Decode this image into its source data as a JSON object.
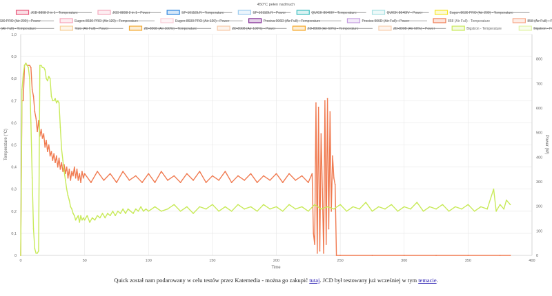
{
  "chart_data": {
    "type": "line",
    "title": "450°C pełen nadmuch",
    "xlabel": "Time",
    "ylabel_left": "Temperature (°C)",
    "ylabel_right": "Power (W)",
    "xlim": [
      0,
      400
    ],
    "ylim_left": [
      0,
      1.0
    ],
    "ylim_right": [
      0,
      900
    ],
    "x_ticks": [
      "0",
      "50",
      "100",
      "150",
      "200",
      "250",
      "300",
      "350",
      "400"
    ],
    "y_left_ticks": [
      "0",
      "0,1",
      "0,2",
      "0,3",
      "0,4",
      "0,5",
      "0,6",
      "0,7",
      "0,8",
      "0,9",
      "1,0"
    ],
    "y_right_ticks": [
      "0",
      "100",
      "200",
      "300",
      "400",
      "500",
      "600",
      "700",
      "800"
    ],
    "grid": true,
    "legend_position": "top",
    "legend": [
      {
        "name": "JCD 8898 2 in 1 - Temperature",
        "color": "#e8567a",
        "hidden": true
      },
      {
        "name": "JCD 8898 2 in 1 - Power",
        "color": "#f4a9bd",
        "hidden": true
      },
      {
        "name": "SP-1011DLR - Temperature",
        "color": "#2e86de",
        "hidden": true
      },
      {
        "name": "SP-1011DLR - Power",
        "color": "#9fcdf0",
        "hidden": true
      },
      {
        "name": "QUICK 8640IV - Temperature",
        "color": "#3fbfc0",
        "hidden": true
      },
      {
        "name": "QUICK 8640IV - Power",
        "color": "#a8e1e2",
        "hidden": true
      },
      {
        "name": "Eugen 8630 PRO (Air 200) - Temperature",
        "color": "#f5e62a",
        "hidden": true
      },
      {
        "name": "Eugen 8630 PRO (Air 200) - Power",
        "color": "#f8ee8c",
        "hidden": true
      },
      {
        "name": "Eugen 8630 PRO (Air 120) - Temperature",
        "color": "#f7a4b8",
        "hidden": true
      },
      {
        "name": "Eugen 8630 PRO (Air 120) - Power",
        "color": "#f9cbd6",
        "hidden": true
      },
      {
        "name": "Prociva 906D (Air Full) - Temperature",
        "color": "#7a1f8e",
        "hidden": true
      },
      {
        "name": "Prociva 906D (Air Full) - Power",
        "color": "#c39be0",
        "hidden": true
      },
      {
        "name": "858 (Air Full) - Temperature",
        "color": "#f07a50",
        "hidden": false
      },
      {
        "name": "858 (Air Full) - Power",
        "color": "#f7a585",
        "hidden": true
      },
      {
        "name": "Yato (Air Full) - Temperature",
        "color": "#f2b14c",
        "hidden": true
      },
      {
        "name": "Yato (Air Full) - Power",
        "color": "#f7d09a",
        "hidden": true
      },
      {
        "name": "ZD-8908 (Air 100%) - Temperature",
        "color": "#f2a930",
        "hidden": true
      },
      {
        "name": "ZD-8908 (Air 100%) - Power",
        "color": "#f7c9a6",
        "hidden": true
      },
      {
        "name": "ZD-8908 (Air 60%) - Temperature",
        "color": "#f5a623",
        "hidden": true
      },
      {
        "name": "ZD-8908 (Air 60%) - Power",
        "color": "#f8cfae",
        "hidden": true
      },
      {
        "name": "Bigstron - Temperature",
        "color": "#c8ea59",
        "hidden": false
      },
      {
        "name": "Bigstron - Power",
        "color": "#e2f3a6",
        "hidden": true
      }
    ],
    "series": [
      {
        "name": "858 (Air Full) - Temperature",
        "color": "#f07a50",
        "axis": "left",
        "points": [
          [
            0,
            0
          ],
          [
            1,
            0.7
          ],
          [
            2,
            0.7
          ],
          [
            3,
            0.86
          ],
          [
            4,
            0.87
          ],
          [
            5,
            0.86
          ],
          [
            6,
            0.86
          ],
          [
            7,
            0.86
          ],
          [
            8,
            0.85
          ],
          [
            9,
            0.75
          ],
          [
            10,
            0.72
          ],
          [
            11,
            0.65
          ],
          [
            12,
            0.62
          ],
          [
            13,
            0.56
          ],
          [
            14,
            0.61
          ],
          [
            15,
            0.54
          ],
          [
            16,
            0.57
          ],
          [
            17,
            0.53
          ],
          [
            18,
            0.55
          ],
          [
            19,
            0.49
          ],
          [
            20,
            0.52
          ],
          [
            21,
            0.47
          ],
          [
            22,
            0.5
          ],
          [
            23,
            0.45
          ],
          [
            24,
            0.47
          ],
          [
            25,
            0.43
          ],
          [
            26,
            0.46
          ],
          [
            27,
            0.42
          ],
          [
            28,
            0.45
          ],
          [
            29,
            0.4
          ],
          [
            30,
            0.44
          ],
          [
            31,
            0.39
          ],
          [
            32,
            0.42
          ],
          [
            33,
            0.38
          ],
          [
            34,
            0.41
          ],
          [
            35,
            0.37
          ],
          [
            36,
            0.4
          ],
          [
            37,
            0.35
          ],
          [
            38,
            0.39
          ],
          [
            39,
            0.34
          ],
          [
            40,
            0.38
          ],
          [
            41,
            0.36
          ],
          [
            42,
            0.4
          ],
          [
            43,
            0.35
          ],
          [
            44,
            0.39
          ],
          [
            45,
            0.34
          ],
          [
            46,
            0.37
          ],
          [
            47,
            0.33
          ],
          [
            48,
            0.38
          ],
          [
            49,
            0.35
          ],
          [
            50,
            0.37
          ],
          [
            55,
            0.33
          ],
          [
            60,
            0.38
          ],
          [
            65,
            0.34
          ],
          [
            70,
            0.37
          ],
          [
            75,
            0.33
          ],
          [
            80,
            0.38
          ],
          [
            85,
            0.34
          ],
          [
            90,
            0.36
          ],
          [
            95,
            0.33
          ],
          [
            100,
            0.37
          ],
          [
            105,
            0.33
          ],
          [
            110,
            0.38
          ],
          [
            115,
            0.34
          ],
          [
            120,
            0.36
          ],
          [
            125,
            0.33
          ],
          [
            130,
            0.37
          ],
          [
            135,
            0.34
          ],
          [
            140,
            0.38
          ],
          [
            145,
            0.33
          ],
          [
            150,
            0.36
          ],
          [
            155,
            0.34
          ],
          [
            160,
            0.38
          ],
          [
            165,
            0.33
          ],
          [
            170,
            0.36
          ],
          [
            175,
            0.34
          ],
          [
            180,
            0.37
          ],
          [
            185,
            0.33
          ],
          [
            190,
            0.36
          ],
          [
            195,
            0.34
          ],
          [
            200,
            0.37
          ],
          [
            205,
            0.33
          ],
          [
            210,
            0.37
          ],
          [
            215,
            0.34
          ],
          [
            220,
            0.36
          ],
          [
            225,
            0.33
          ],
          [
            228,
            0.37
          ],
          [
            229,
            0.1
          ],
          [
            230,
            0.05
          ],
          [
            231,
            0.69
          ],
          [
            232,
            0.01
          ],
          [
            233,
            0.67
          ],
          [
            234,
            0.02
          ],
          [
            235,
            0.55
          ],
          [
            236,
            0.3
          ],
          [
            237,
            0.01
          ],
          [
            238,
            0.7
          ],
          [
            239,
            0.05
          ],
          [
            240,
            0.71
          ],
          [
            241,
            0.12
          ],
          [
            242,
            0.65
          ],
          [
            243,
            0.2
          ],
          [
            244,
            0.45
          ],
          [
            245,
            0.35
          ],
          [
            246,
            0.32
          ],
          [
            247,
            0
          ],
          [
            250,
            0
          ],
          [
            275,
            0
          ],
          [
            300,
            0
          ],
          [
            325,
            0
          ],
          [
            350,
            0
          ],
          [
            375,
            0
          ],
          [
            383,
            0
          ]
        ]
      },
      {
        "name": "Bigstron - Temperature",
        "color": "#c8ea59",
        "axis": "left",
        "points": [
          [
            0,
            0
          ],
          [
            1,
            0.75
          ],
          [
            2,
            0.82
          ],
          [
            3,
            0.86
          ],
          [
            4,
            0.87
          ],
          [
            5,
            0.86
          ],
          [
            6,
            0.85
          ],
          [
            7,
            0.8
          ],
          [
            8,
            0.6
          ],
          [
            9,
            0.35
          ],
          [
            10,
            0.12
          ],
          [
            11,
            0.03
          ],
          [
            12,
            0.01
          ],
          [
            13,
            0.01
          ],
          [
            14,
            0.02
          ],
          [
            15,
            0.86
          ],
          [
            16,
            0.86
          ],
          [
            17,
            0.85
          ],
          [
            18,
            0.85
          ],
          [
            19,
            0.84
          ],
          [
            20,
            0.8
          ],
          [
            21,
            0.79
          ],
          [
            22,
            0.81
          ],
          [
            23,
            0.8
          ],
          [
            24,
            0.72
          ],
          [
            25,
            0.7
          ],
          [
            26,
            0.7
          ],
          [
            27,
            0.71
          ],
          [
            28,
            0.69
          ],
          [
            29,
            0.7
          ],
          [
            30,
            0.69
          ],
          [
            31,
            0.58
          ],
          [
            32,
            0.48
          ],
          [
            33,
            0.43
          ],
          [
            34,
            0.38
          ],
          [
            35,
            0.34
          ],
          [
            36,
            0.3
          ],
          [
            37,
            0.27
          ],
          [
            38,
            0.25
          ],
          [
            39,
            0.22
          ],
          [
            40,
            0.21
          ],
          [
            41,
            0.19
          ],
          [
            42,
            0.18
          ],
          [
            43,
            0.16
          ],
          [
            44,
            0.17
          ],
          [
            45,
            0.18
          ],
          [
            46,
            0.15
          ],
          [
            47,
            0.18
          ],
          [
            48,
            0.16
          ],
          [
            49,
            0.17
          ],
          [
            50,
            0.16
          ],
          [
            52,
            0.18
          ],
          [
            54,
            0.15
          ],
          [
            56,
            0.17
          ],
          [
            58,
            0.16
          ],
          [
            60,
            0.18
          ],
          [
            62,
            0.17
          ],
          [
            64,
            0.19
          ],
          [
            66,
            0.17
          ],
          [
            68,
            0.19
          ],
          [
            70,
            0.18
          ],
          [
            72,
            0.2
          ],
          [
            74,
            0.18
          ],
          [
            76,
            0.2
          ],
          [
            78,
            0.19
          ],
          [
            80,
            0.21
          ],
          [
            82,
            0.19
          ],
          [
            84,
            0.21
          ],
          [
            86,
            0.2
          ],
          [
            88,
            0.19
          ],
          [
            90,
            0.21
          ],
          [
            92,
            0.2
          ],
          [
            94,
            0.22
          ],
          [
            96,
            0.2
          ],
          [
            98,
            0.21
          ],
          [
            100,
            0.2
          ],
          [
            105,
            0.22
          ],
          [
            110,
            0.2
          ],
          [
            115,
            0.21
          ],
          [
            120,
            0.23
          ],
          [
            125,
            0.2
          ],
          [
            130,
            0.22
          ],
          [
            135,
            0.19
          ],
          [
            140,
            0.22
          ],
          [
            145,
            0.21
          ],
          [
            150,
            0.23
          ],
          [
            155,
            0.2
          ],
          [
            160,
            0.22
          ],
          [
            165,
            0.2
          ],
          [
            170,
            0.23
          ],
          [
            175,
            0.21
          ],
          [
            180,
            0.22
          ],
          [
            185,
            0.2
          ],
          [
            190,
            0.23
          ],
          [
            195,
            0.21
          ],
          [
            200,
            0.22
          ],
          [
            205,
            0.2
          ],
          [
            210,
            0.23
          ],
          [
            215,
            0.21
          ],
          [
            220,
            0.22
          ],
          [
            225,
            0.2
          ],
          [
            230,
            0.23
          ],
          [
            235,
            0.21
          ],
          [
            240,
            0.22
          ],
          [
            245,
            0.21
          ],
          [
            250,
            0.23
          ],
          [
            255,
            0.2
          ],
          [
            260,
            0.22
          ],
          [
            265,
            0.21
          ],
          [
            270,
            0.24
          ],
          [
            275,
            0.2
          ],
          [
            280,
            0.22
          ],
          [
            285,
            0.21
          ],
          [
            290,
            0.23
          ],
          [
            295,
            0.2
          ],
          [
            300,
            0.22
          ],
          [
            305,
            0.21
          ],
          [
            310,
            0.24
          ],
          [
            315,
            0.2
          ],
          [
            320,
            0.22
          ],
          [
            325,
            0.21
          ],
          [
            330,
            0.23
          ],
          [
            335,
            0.2
          ],
          [
            340,
            0.22
          ],
          [
            345,
            0.21
          ],
          [
            350,
            0.23
          ],
          [
            355,
            0.2
          ],
          [
            360,
            0.22
          ],
          [
            365,
            0.21
          ],
          [
            370,
            0.3
          ],
          [
            372,
            0.2
          ],
          [
            375,
            0.23
          ],
          [
            378,
            0.21
          ],
          [
            380,
            0.25
          ],
          [
            383,
            0.23
          ]
        ]
      }
    ]
  },
  "caption": {
    "before": "Quick został nam podarowany w celu testów przez Katemedia - można go zakupić ",
    "link1": "tutaj",
    "middle": ". JCD był testowany już wcześniej w tym ",
    "link2": "temacie",
    "after": "."
  }
}
